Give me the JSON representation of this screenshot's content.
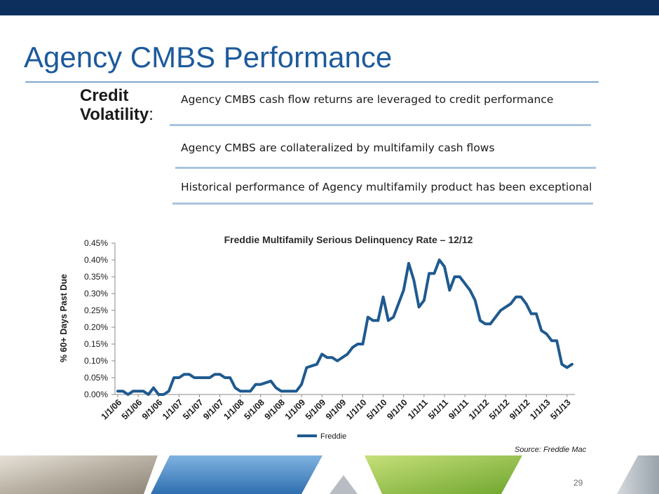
{
  "slide": {
    "title": "Agency CMBS Performance",
    "section_label_line1": "Credit",
    "section_label_line2": "Volatility",
    "section_label_colon": ":",
    "bullets": [
      "Agency CMBS cash flow returns are leveraged to credit performance",
      "Agency CMBS are collateralized by multifamily cash flows",
      "Historical performance of Agency multifamily product has been exceptional"
    ],
    "source": "Source: Freddie Mac",
    "page_number": "29"
  },
  "colors": {
    "top_bar": "#0d2f5e",
    "title": "#1d5a9c",
    "series_line": "#1f5a8f",
    "rule": "#a9c4de"
  },
  "chart_data": {
    "type": "line",
    "title": "Freddie Multifamily Serious Delinquency Rate – 12/12",
    "xlabel": "",
    "ylabel": "% 60+ Days Past Due",
    "ylim": [
      0,
      0.45
    ],
    "y_ticks": [
      "0.00%",
      "0.05%",
      "0.10%",
      "0.15%",
      "0.20%",
      "0.25%",
      "0.30%",
      "0.35%",
      "0.40%",
      "0.45%"
    ],
    "x_tick_labels": [
      "1/1/06",
      "5/1/06",
      "9/1/06",
      "1/1/07",
      "5/1/07",
      "9/1/07",
      "1/1/08",
      "5/1/08",
      "9/1/08",
      "1/1/09",
      "5/1/09",
      "9/1/09",
      "1/1/10",
      "5/1/10",
      "9/1/10",
      "1/1/11",
      "5/1/11",
      "9/1/11",
      "1/1/12",
      "5/1/12",
      "9/1/12",
      "1/1/13",
      "5/1/13"
    ],
    "x_start": "1/1/06",
    "x_interval_months": 1,
    "legend_position": "bottom",
    "grid": false,
    "series": [
      {
        "name": "Freddie",
        "values": [
          0.01,
          0.01,
          0.0,
          0.01,
          0.01,
          0.01,
          0.0,
          0.02,
          0.0,
          0.0,
          0.01,
          0.05,
          0.05,
          0.06,
          0.06,
          0.05,
          0.05,
          0.05,
          0.05,
          0.06,
          0.06,
          0.05,
          0.05,
          0.02,
          0.01,
          0.01,
          0.01,
          0.03,
          0.03,
          0.035,
          0.04,
          0.02,
          0.01,
          0.01,
          0.01,
          0.01,
          0.03,
          0.08,
          0.085,
          0.09,
          0.12,
          0.11,
          0.11,
          0.1,
          0.11,
          0.12,
          0.14,
          0.15,
          0.15,
          0.23,
          0.22,
          0.22,
          0.29,
          0.22,
          0.23,
          0.27,
          0.31,
          0.39,
          0.34,
          0.26,
          0.28,
          0.36,
          0.36,
          0.4,
          0.38,
          0.31,
          0.35,
          0.35,
          0.33,
          0.31,
          0.28,
          0.22,
          0.21,
          0.21,
          0.23,
          0.25,
          0.26,
          0.27,
          0.29,
          0.29,
          0.27,
          0.24,
          0.24,
          0.19,
          0.18,
          0.16,
          0.16,
          0.09,
          0.08,
          0.09
        ]
      }
    ]
  }
}
